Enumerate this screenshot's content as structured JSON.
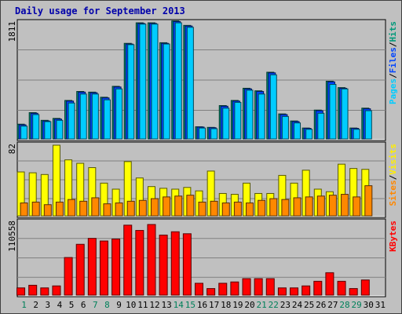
{
  "chart_data": {
    "title": "Daily usage for September 2013",
    "type": "bar",
    "categories": [
      "1",
      "2",
      "3",
      "4",
      "5",
      "6",
      "7",
      "8",
      "9",
      "10",
      "11",
      "12",
      "13",
      "14",
      "15",
      "16",
      "17",
      "18",
      "19",
      "20",
      "21",
      "22",
      "23",
      "24",
      "25",
      "26",
      "27",
      "28",
      "29",
      "30",
      "31"
    ],
    "weekend_days": [
      "1",
      "7",
      "8",
      "14",
      "15",
      "21",
      "22",
      "28",
      "29"
    ],
    "panels": [
      {
        "name": "hits-files-pages",
        "ymax_label": "1811",
        "ymax": 1811,
        "grid": true,
        "axis_labels": [
          {
            "text": "Pages",
            "color": "#00ccff"
          },
          {
            "text": "/",
            "color": "#000000"
          },
          {
            "text": "Files",
            "color": "#0044ff"
          },
          {
            "text": "/",
            "color": "#000000"
          },
          {
            "text": "Hits",
            "color": "#00997a"
          }
        ],
        "series": [
          {
            "color": "#00997a",
            "values": [
              230,
              410,
              290,
              320,
              600,
              740,
              730,
              650,
              820,
              1490,
              1810,
              1810,
              1500,
              1840,
              1770,
              190,
              180,
              520,
              600,
              790,
              750,
              1040,
              390,
              280,
              170,
              450,
              900,
              800,
              170,
              480,
              0
            ]
          },
          {
            "color": "#0044ff",
            "values": [
              220,
              400,
              280,
              310,
              590,
              730,
              720,
              640,
              810,
              1480,
              1800,
              1800,
              1490,
              1830,
              1760,
              185,
              175,
              510,
              590,
              780,
              740,
              1030,
              380,
              270,
              165,
              440,
              890,
              790,
              165,
              470,
              0
            ]
          },
          {
            "color": "#00ccff",
            "values": [
              200,
              380,
              270,
              290,
              560,
              700,
              700,
              610,
              780,
              1470,
              1790,
              1790,
              1480,
              1810,
              1740,
              170,
              160,
              480,
              570,
              760,
              700,
              1000,
              350,
              250,
              150,
              400,
              850,
              780,
              150,
              440,
              0
            ]
          }
        ]
      },
      {
        "name": "visits-sites",
        "ymax_label": "82",
        "ymax": 82,
        "grid": true,
        "axis_labels": [
          {
            "text": "Sites",
            "color": "#ff8800"
          },
          {
            "text": "/",
            "color": "#000000"
          },
          {
            "text": "Visits",
            "color": "#ffee00"
          }
        ],
        "series": [
          {
            "color": "#ffff00",
            "values": [
              51,
              50,
              48,
              82,
              65,
              61,
              56,
              38,
              31,
              63,
              44,
              34,
              32,
              31,
              33,
              29,
              52,
              26,
              25,
              38,
              26,
              26,
              47,
              38,
              53,
              31,
              28,
              60,
              55,
              54,
              0
            ]
          },
          {
            "color": "#ff8800",
            "values": [
              15,
              16,
              13,
              16,
              19,
              17,
              21,
              14,
              15,
              17,
              18,
              20,
              22,
              23,
              24,
              16,
              17,
              15,
              16,
              15,
              18,
              20,
              19,
              21,
              22,
              23,
              24,
              25,
              22,
              35,
              0
            ]
          }
        ]
      },
      {
        "name": "kbytes",
        "ymax_label": "110558",
        "ymax": 110558,
        "grid": true,
        "axis_labels": [
          {
            "text": "KBytes",
            "color": "#ff0000"
          }
        ],
        "series": [
          {
            "color": "#ff0000",
            "values": [
              11000,
              15000,
              11000,
              14000,
              57000,
              77000,
              86000,
              82000,
              85000,
              106000,
              98000,
              107000,
              91000,
              96000,
              93000,
              18000,
              10000,
              18000,
              20000,
              25000,
              25000,
              25000,
              11000,
              11000,
              14000,
              21000,
              34000,
              21000,
              10000,
              23000,
              0
            ]
          }
        ]
      }
    ]
  }
}
